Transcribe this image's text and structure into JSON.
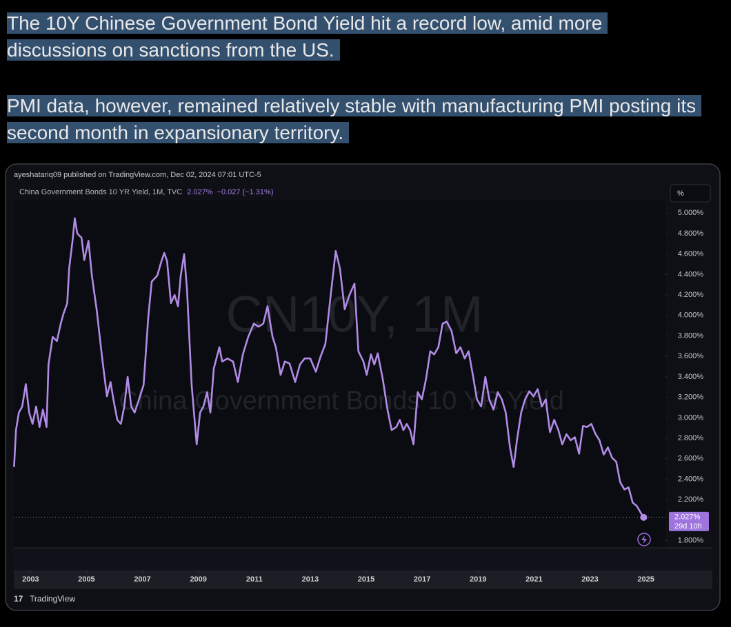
{
  "post": {
    "paragraphs": [
      "The 10Y Chinese Government Bond Yield hit a record low, amid more discussions on sanctions from the US.",
      "PMI data, however, remained relatively stable with manufacturing PMI posting its second month in expansionary territory."
    ]
  },
  "chart_data": {
    "type": "line",
    "publisher": "ayeshatariq09 published on TradingView.com, Dec 02, 2024 07:01 UTC-5",
    "legend_title": "China Government Bonds 10 YR Yield, 1M, TVC",
    "legend_value": "2.027%",
    "legend_change": "−0.027 (−1.31%)",
    "watermark": [
      "CN10Y, 1M",
      "China Government Bonds 10 YR Yield"
    ],
    "axis_unit": "%",
    "last_label": "2.027%",
    "countdown": "29d 10h",
    "brand": "TradingView",
    "xlim": [
      2002.4,
      2025.7
    ],
    "xticks": [
      2003,
      2005,
      2007,
      2009,
      2011,
      2013,
      2015,
      2017,
      2019,
      2021,
      2023,
      2025
    ],
    "ylim": [
      1.73,
      5.13
    ],
    "yticks": [
      {
        "value": 5,
        "label": "5.000%"
      },
      {
        "value": 4.8,
        "label": "4.800%"
      },
      {
        "value": 4.6,
        "label": "4.600%"
      },
      {
        "value": 4.4,
        "label": "4.400%"
      },
      {
        "value": 4.2,
        "label": "4.200%"
      },
      {
        "value": 4,
        "label": "4.000%"
      },
      {
        "value": 3.8,
        "label": "3.800%"
      },
      {
        "value": 3.6,
        "label": "3.600%"
      },
      {
        "value": 3.4,
        "label": "3.400%"
      },
      {
        "value": 3.2,
        "label": "3.200%"
      },
      {
        "value": 3,
        "label": "3.000%"
      },
      {
        "value": 2.8,
        "label": "2.800%"
      },
      {
        "value": 2.6,
        "label": "2.600%"
      },
      {
        "value": 2.4,
        "label": "2.400%"
      },
      {
        "value": 2.2,
        "label": "2.200%"
      },
      {
        "value": 1.8,
        "label": "1.800%"
      }
    ],
    "series": [
      {
        "name": "China Government Bonds 10 YR Yield",
        "color": "#b28be6",
        "x": [
          2002.41,
          2002.48,
          2002.58,
          2002.7,
          2002.83,
          2002.95,
          2003.07,
          2003.2,
          2003.32,
          2003.44,
          2003.57,
          2003.64,
          2003.79,
          2003.94,
          2004.08,
          2004.18,
          2004.31,
          2004.38,
          2004.5,
          2004.58,
          2004.67,
          2004.82,
          2004.92,
          2005.07,
          2005.19,
          2005.36,
          2005.56,
          2005.73,
          2005.86,
          2005.96,
          2006.1,
          2006.23,
          2006.35,
          2006.47,
          2006.6,
          2006.72,
          2006.84,
          2007.04,
          2007.21,
          2007.33,
          2007.53,
          2007.68,
          2007.78,
          2007.88,
          2008.02,
          2008.15,
          2008.27,
          2008.37,
          2008.49,
          2008.59,
          2008.76,
          2008.94,
          2009.06,
          2009.18,
          2009.31,
          2009.43,
          2009.55,
          2009.75,
          2009.85,
          2010.04,
          2010.24,
          2010.41,
          2010.59,
          2010.78,
          2010.98,
          2011.15,
          2011.32,
          2011.47,
          2011.65,
          2011.77,
          2011.94,
          2012.09,
          2012.26,
          2012.46,
          2012.63,
          2012.8,
          2013.0,
          2013.2,
          2013.37,
          2013.54,
          2013.74,
          2013.91,
          2014.06,
          2014.23,
          2014.4,
          2014.58,
          2014.72,
          2014.9,
          2015.02,
          2015.17,
          2015.29,
          2015.41,
          2015.59,
          2015.76,
          2015.91,
          2016.08,
          2016.2,
          2016.33,
          2016.45,
          2016.57,
          2016.69,
          2016.84,
          2016.99,
          2017.14,
          2017.29,
          2017.43,
          2017.58,
          2017.73,
          2017.88,
          2018.05,
          2018.22,
          2018.37,
          2018.52,
          2018.66,
          2018.81,
          2018.96,
          2019.11,
          2019.26,
          2019.4,
          2019.55,
          2019.7,
          2019.85,
          2019.99,
          2020.14,
          2020.27,
          2020.39,
          2020.54,
          2020.68,
          2020.83,
          2020.98,
          2021.13,
          2021.28,
          2021.42,
          2021.57,
          2021.72,
          2021.87,
          2022.01,
          2022.16,
          2022.31,
          2022.46,
          2022.61,
          2022.75,
          2022.9,
          2023.05,
          2023.2,
          2023.34,
          2023.49,
          2023.64,
          2023.79,
          2023.94,
          2024.08,
          2024.23,
          2024.38,
          2024.53,
          2024.67,
          2024.82,
          2024.92
        ],
        "values": [
          2.52,
          2.88,
          3.05,
          3.11,
          3.33,
          3.05,
          2.94,
          3.11,
          2.91,
          3.08,
          2.91,
          3.52,
          3.79,
          3.75,
          3.92,
          4.02,
          4.12,
          4.46,
          4.73,
          4.95,
          4.8,
          4.76,
          4.54,
          4.73,
          4.39,
          4.06,
          3.58,
          3.21,
          3.35,
          3.18,
          2.98,
          2.94,
          3.11,
          3.4,
          3.11,
          3.05,
          3.15,
          3.32,
          3.99,
          4.33,
          4.39,
          4.53,
          4.61,
          4.53,
          4.12,
          4.2,
          4.09,
          4.39,
          4.6,
          4.26,
          3.32,
          2.74,
          3.05,
          3.11,
          3.25,
          3.05,
          3.48,
          3.69,
          3.55,
          3.58,
          3.55,
          3.35,
          3.62,
          3.79,
          3.92,
          3.89,
          3.92,
          4.09,
          3.79,
          3.69,
          3.42,
          3.55,
          3.53,
          3.35,
          3.52,
          3.58,
          3.58,
          3.45,
          3.6,
          3.72,
          4.22,
          4.63,
          4.46,
          4.06,
          4.2,
          4.31,
          3.65,
          3.55,
          3.42,
          3.62,
          3.52,
          3.63,
          3.38,
          3.08,
          2.88,
          2.91,
          2.98,
          2.88,
          2.94,
          2.88,
          2.74,
          3.25,
          3.18,
          3.38,
          3.65,
          3.62,
          3.69,
          3.92,
          3.94,
          3.85,
          3.63,
          3.69,
          3.58,
          3.65,
          3.42,
          3.18,
          3.11,
          3.4,
          3.18,
          3.08,
          3.25,
          3.18,
          3.05,
          2.71,
          2.52,
          2.78,
          3.05,
          3.18,
          3.26,
          3.21,
          3.28,
          3.11,
          3.18,
          2.86,
          2.98,
          2.88,
          2.74,
          2.84,
          2.78,
          2.81,
          2.65,
          2.92,
          2.91,
          2.94,
          2.84,
          2.78,
          2.64,
          2.71,
          2.61,
          2.57,
          2.37,
          2.3,
          2.32,
          2.17,
          2.14,
          2.07,
          2.027
        ]
      }
    ]
  }
}
